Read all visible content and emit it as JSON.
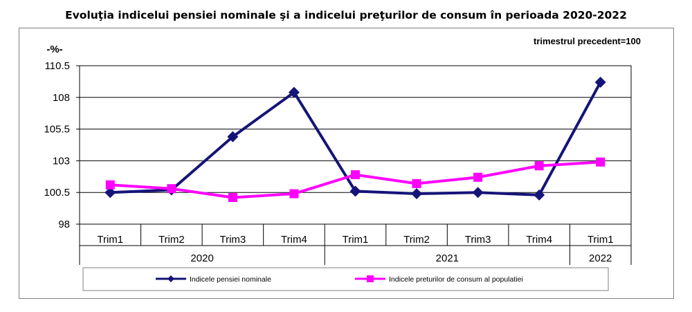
{
  "chart_data": {
    "type": "line",
    "title": "Evoluţia indicelui pensiei nominale şi a indicelui preţurilor de consum în perioada 2020-2022",
    "note": "trimestrul precedent=100",
    "ylabel": "-%-",
    "xlabel": "",
    "ylim": [
      98,
      110.5
    ],
    "yticks": [
      "110.5",
      "108",
      "105.5",
      "103",
      "100.5",
      "98"
    ],
    "categories": [
      "Trim1",
      "Trim2",
      "Trim3",
      "Trim4",
      "Trim1",
      "Trim2",
      "Trim3",
      "Trim4",
      "Trim1"
    ],
    "years": [
      {
        "label": "2020",
        "span": 4
      },
      {
        "label": "2021",
        "span": 4
      },
      {
        "label": "2022",
        "span": 1
      }
    ],
    "series": [
      {
        "name": "Indicele pensiei nominale",
        "color": "#141478",
        "marker": "diamond",
        "values": [
          100.5,
          100.7,
          104.9,
          108.4,
          100.6,
          100.4,
          100.5,
          100.3,
          109.2
        ]
      },
      {
        "name": "Indicele preturilor de consum al populatiei",
        "color": "#ff00ff",
        "marker": "square",
        "values": [
          101.1,
          100.8,
          100.1,
          100.4,
          101.9,
          101.2,
          101.7,
          102.6,
          102.9
        ]
      }
    ],
    "grid": true,
    "legend": "bottom"
  }
}
